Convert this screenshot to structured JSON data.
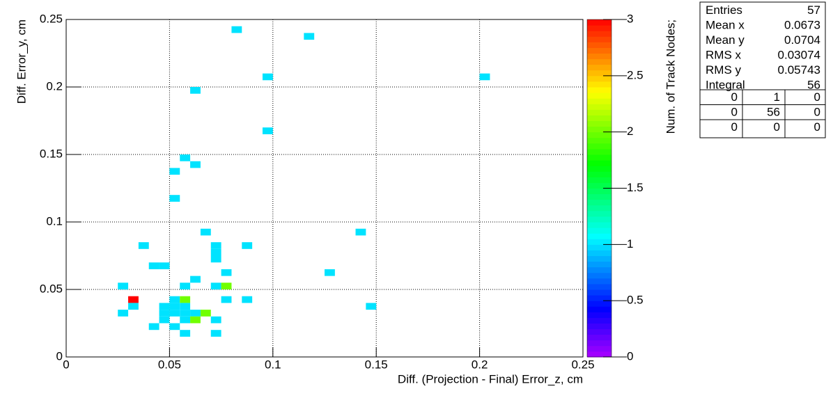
{
  "chart_data": {
    "type": "heatmap2d",
    "x_label": "Diff. (Projection - Final) Error_z, cm",
    "y_label": "Diff. Error_y, cm",
    "z_label": "Num. of Track Nodes;",
    "xlim": [
      0,
      0.25
    ],
    "xticks": [
      0,
      0.05,
      0.1,
      0.15,
      0.2,
      0.25
    ],
    "ylim": [
      0,
      0.25
    ],
    "yticks": [
      0,
      0.05,
      0.1,
      0.15,
      0.2,
      0.25
    ],
    "zlim": [
      0,
      3
    ],
    "zticks": [
      0,
      0.5,
      1,
      1.5,
      2,
      2.5,
      3
    ],
    "grid": true,
    "colormap": "rainbow",
    "cells": {
      "x": [
        0.0825,
        0.1175,
        0.0975,
        0.2025,
        0.0625,
        0.0975,
        0.0575,
        0.0625,
        0.0525,
        0.0525,
        0.0675,
        0.1425,
        0.0375,
        0.0725,
        0.0875,
        0.0725,
        0.0725,
        0.0425,
        0.0475,
        0.0775,
        0.1275,
        0.0625,
        0.0275,
        0.0575,
        0.0725,
        0.0775,
        0.0325,
        0.0525,
        0.0575,
        0.0775,
        0.0875,
        0.0325,
        0.0475,
        0.0525,
        0.0575,
        0.1475,
        0.0275,
        0.0475,
        0.0525,
        0.0575,
        0.0625,
        0.0675,
        0.0475,
        0.0575,
        0.0625,
        0.0725,
        0.0425,
        0.0525,
        0.0575,
        0.0725
      ],
      "y": [
        0.2425,
        0.2375,
        0.2075,
        0.2075,
        0.1975,
        0.1675,
        0.1475,
        0.1425,
        0.1375,
        0.1175,
        0.0925,
        0.0925,
        0.0825,
        0.0825,
        0.0825,
        0.0775,
        0.0725,
        0.0675,
        0.0675,
        0.0625,
        0.0625,
        0.0575,
        0.0525,
        0.0525,
        0.0525,
        0.0525,
        0.0425,
        0.0425,
        0.0425,
        0.0425,
        0.0425,
        0.0375,
        0.0375,
        0.0375,
        0.0375,
        0.0375,
        0.0325,
        0.0325,
        0.0325,
        0.0325,
        0.0325,
        0.0325,
        0.0275,
        0.0275,
        0.0275,
        0.0275,
        0.0225,
        0.0225,
        0.0175,
        0.0175
      ],
      "z": [
        1,
        1,
        1,
        1,
        1,
        1,
        1,
        1,
        1,
        1,
        1,
        1,
        1,
        1,
        1,
        1,
        1,
        1,
        1,
        1,
        1,
        1,
        1,
        1,
        1,
        2,
        3,
        1,
        2,
        1,
        1,
        1,
        1,
        1,
        1,
        1,
        1,
        1,
        1,
        1,
        1,
        2,
        1,
        1,
        2,
        1,
        1,
        1,
        1,
        1
      ]
    },
    "stats": [
      {
        "label": "Entries",
        "value": 57
      },
      {
        "label": "Mean x",
        "value": 0.0673
      },
      {
        "label": "Mean y",
        "value": 0.0704
      },
      {
        "label": "RMS x",
        "value": 0.03074
      },
      {
        "label": "RMS y",
        "value": 0.05743
      },
      {
        "label": "Integral",
        "value": 56
      }
    ],
    "overflow_grid": [
      [
        0,
        1,
        0
      ],
      [
        0,
        56,
        0
      ],
      [
        0,
        0,
        0
      ]
    ]
  }
}
